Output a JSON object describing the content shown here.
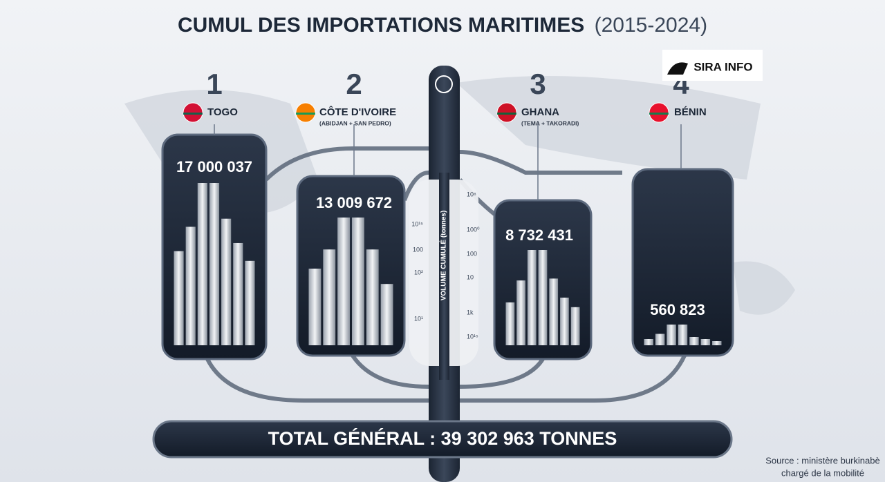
{
  "title": "CUMUL DES IMPORTATIONS MARITIMES",
  "period": "(2015-2024)",
  "logo": "SIRA INFO",
  "countries": [
    {
      "rank": "1",
      "name": "TOGO",
      "value": "17 000 037"
    },
    {
      "rank": "2",
      "name": "CÔTE D'IVOIRE",
      "sub": "(ABIDJAN + SAN PEDRO)",
      "value": "13 009 672"
    },
    {
      "rank": "3",
      "name": "GHANA",
      "sub": "(TEMA + TAKORADI)",
      "value": "8 732 431"
    },
    {
      "rank": "4",
      "name": "BÉNIN",
      "value": "560 823"
    }
  ],
  "axis": {
    "label": "VOLUME CUMULÉ (tonnes)",
    "left_ticks": [
      "10¹⁵",
      "100",
      "10²",
      "10¹"
    ],
    "right_ticks": [
      "10⁸",
      "100⁰",
      "100",
      "10",
      "1k",
      "10¹⁵"
    ]
  },
  "total": "TOTAL GÉNÉRAL : 39 302 963 TONNES",
  "source": [
    "Source : ministère burkinabè",
    "chargé de la mobilité"
  ]
}
